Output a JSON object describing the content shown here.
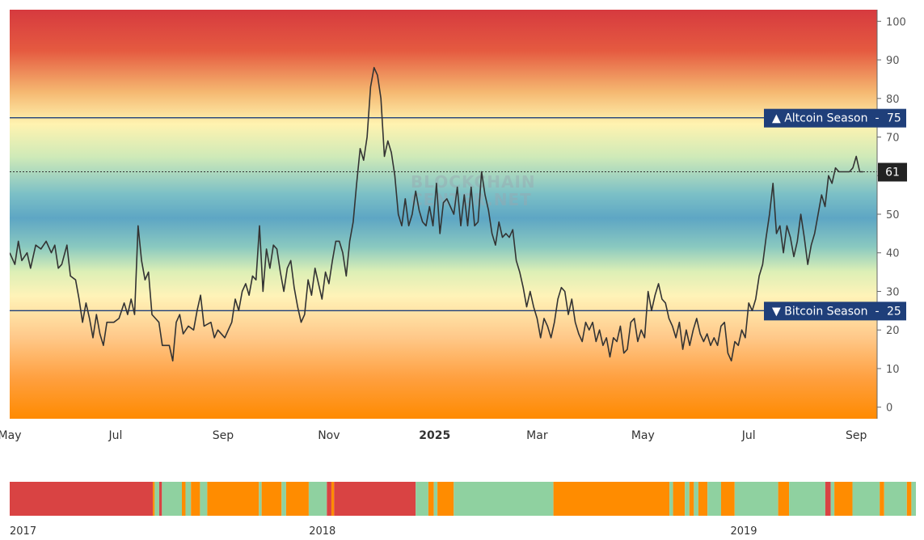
{
  "colors": {
    "band_red": "#d63a3f",
    "band_yellow": "#fff3b0",
    "band_blue": "#5ea6c4",
    "band_orange": "#ff8a00",
    "line": "#333333",
    "marker_navy": "#1f3f7a",
    "timeline_red": "#d94343",
    "timeline_green": "#8fd1a0",
    "timeline_orange": "#ff8c00"
  },
  "watermark": {
    "line1": "BLOCKCHAIN",
    "line2": "CENTER.NET"
  },
  "chart_data": {
    "type": "line",
    "title": "",
    "xlabel": "",
    "ylabel": "",
    "ylim": [
      -3,
      103
    ],
    "y_ticks": [
      0,
      10,
      20,
      30,
      40,
      50,
      60,
      70,
      80,
      90,
      100
    ],
    "x_range_days": [
      0,
      500
    ],
    "x_ticks": [
      {
        "label": "May",
        "day": 0,
        "bold": false
      },
      {
        "label": "Jul",
        "day": 61,
        "bold": false
      },
      {
        "label": "Sep",
        "day": 123,
        "bold": false
      },
      {
        "label": "Nov",
        "day": 184,
        "bold": false
      },
      {
        "label": "2025",
        "day": 245,
        "bold": true
      },
      {
        "label": "Mar",
        "day": 304,
        "bold": false
      },
      {
        "label": "May",
        "day": 365,
        "bold": false
      },
      {
        "label": "Jul",
        "day": 426,
        "bold": false
      },
      {
        "label": "Sep",
        "day": 488,
        "bold": false
      }
    ],
    "reference_lines": [
      {
        "label": "Altcoin Season",
        "value": 75,
        "arrow": "▲",
        "value_label": "75"
      },
      {
        "label": "Bitcoin Season",
        "value": 25,
        "arrow": "▼",
        "value_label": "25"
      }
    ],
    "current": {
      "value": 61,
      "label": "61"
    },
    "series": [
      {
        "values": [
          [
            0,
            40
          ],
          [
            3,
            37
          ],
          [
            5,
            43
          ],
          [
            7,
            38
          ],
          [
            10,
            40
          ],
          [
            12,
            36
          ],
          [
            15,
            42
          ],
          [
            18,
            41
          ],
          [
            21,
            43
          ],
          [
            24,
            40
          ],
          [
            26,
            42
          ],
          [
            28,
            36
          ],
          [
            30,
            37
          ],
          [
            33,
            42
          ],
          [
            35,
            34
          ],
          [
            38,
            33
          ],
          [
            40,
            28
          ],
          [
            42,
            22
          ],
          [
            44,
            27
          ],
          [
            46,
            23
          ],
          [
            48,
            18
          ],
          [
            50,
            24
          ],
          [
            52,
            19
          ],
          [
            54,
            16
          ],
          [
            56,
            22
          ],
          [
            60,
            22
          ],
          [
            63,
            23
          ],
          [
            66,
            27
          ],
          [
            68,
            24
          ],
          [
            70,
            28
          ],
          [
            72,
            24
          ],
          [
            74,
            47
          ],
          [
            76,
            38
          ],
          [
            78,
            33
          ],
          [
            80,
            35
          ],
          [
            82,
            24
          ],
          [
            84,
            23
          ],
          [
            86,
            22
          ],
          [
            88,
            16
          ],
          [
            92,
            16
          ],
          [
            94,
            12
          ],
          [
            96,
            22
          ],
          [
            98,
            24
          ],
          [
            100,
            19
          ],
          [
            103,
            21
          ],
          [
            106,
            20
          ],
          [
            108,
            25
          ],
          [
            110,
            29
          ],
          [
            112,
            21
          ],
          [
            116,
            22
          ],
          [
            118,
            18
          ],
          [
            120,
            20
          ],
          [
            124,
            18
          ],
          [
            126,
            20
          ],
          [
            128,
            22
          ],
          [
            130,
            28
          ],
          [
            132,
            25
          ],
          [
            134,
            30
          ],
          [
            136,
            32
          ],
          [
            138,
            29
          ],
          [
            140,
            34
          ],
          [
            142,
            33
          ],
          [
            144,
            47
          ],
          [
            146,
            30
          ],
          [
            148,
            41
          ],
          [
            150,
            36
          ],
          [
            152,
            42
          ],
          [
            154,
            41
          ],
          [
            156,
            35
          ],
          [
            158,
            30
          ],
          [
            160,
            36
          ],
          [
            162,
            38
          ],
          [
            164,
            31
          ],
          [
            166,
            26
          ],
          [
            168,
            22
          ],
          [
            170,
            24
          ],
          [
            172,
            33
          ],
          [
            174,
            29
          ],
          [
            176,
            36
          ],
          [
            178,
            32
          ],
          [
            180,
            28
          ],
          [
            182,
            35
          ],
          [
            184,
            32
          ],
          [
            186,
            38
          ],
          [
            188,
            43
          ],
          [
            190,
            43
          ],
          [
            192,
            40
          ],
          [
            194,
            34
          ],
          [
            196,
            43
          ],
          [
            198,
            48
          ],
          [
            200,
            58
          ],
          [
            202,
            67
          ],
          [
            204,
            64
          ],
          [
            206,
            70
          ],
          [
            208,
            83
          ],
          [
            210,
            88
          ],
          [
            212,
            86
          ],
          [
            214,
            80
          ],
          [
            216,
            65
          ],
          [
            218,
            69
          ],
          [
            220,
            66
          ],
          [
            222,
            60
          ],
          [
            224,
            50
          ],
          [
            226,
            47
          ],
          [
            228,
            54
          ],
          [
            230,
            47
          ],
          [
            232,
            50
          ],
          [
            234,
            56
          ],
          [
            236,
            51
          ],
          [
            238,
            48
          ],
          [
            240,
            47
          ],
          [
            242,
            52
          ],
          [
            244,
            47
          ],
          [
            246,
            58
          ],
          [
            248,
            45
          ],
          [
            250,
            53
          ],
          [
            252,
            54
          ],
          [
            254,
            52
          ],
          [
            256,
            50
          ],
          [
            258,
            57
          ],
          [
            260,
            47
          ],
          [
            262,
            55
          ],
          [
            264,
            47
          ],
          [
            266,
            57
          ],
          [
            268,
            47
          ],
          [
            270,
            48
          ],
          [
            272,
            61
          ],
          [
            274,
            55
          ],
          [
            276,
            51
          ],
          [
            278,
            45
          ],
          [
            280,
            42
          ],
          [
            282,
            48
          ],
          [
            284,
            44
          ],
          [
            286,
            45
          ],
          [
            288,
            44
          ],
          [
            290,
            46
          ],
          [
            292,
            38
          ],
          [
            294,
            35
          ],
          [
            296,
            31
          ],
          [
            298,
            26
          ],
          [
            300,
            30
          ],
          [
            302,
            26
          ],
          [
            304,
            23
          ],
          [
            306,
            18
          ],
          [
            308,
            23
          ],
          [
            310,
            21
          ],
          [
            312,
            18
          ],
          [
            314,
            22
          ],
          [
            316,
            28
          ],
          [
            318,
            31
          ],
          [
            320,
            30
          ],
          [
            322,
            24
          ],
          [
            324,
            28
          ],
          [
            326,
            22
          ],
          [
            328,
            19
          ],
          [
            330,
            17
          ],
          [
            332,
            22
          ],
          [
            334,
            20
          ],
          [
            336,
            22
          ],
          [
            338,
            17
          ],
          [
            340,
            20
          ],
          [
            342,
            16
          ],
          [
            344,
            18
          ],
          [
            346,
            13
          ],
          [
            348,
            18
          ],
          [
            350,
            17
          ],
          [
            352,
            21
          ],
          [
            354,
            14
          ],
          [
            356,
            15
          ],
          [
            358,
            22
          ],
          [
            360,
            23
          ],
          [
            362,
            17
          ],
          [
            364,
            20
          ],
          [
            366,
            18
          ],
          [
            368,
            30
          ],
          [
            370,
            25
          ],
          [
            372,
            29
          ],
          [
            374,
            32
          ],
          [
            376,
            28
          ],
          [
            378,
            27
          ],
          [
            380,
            23
          ],
          [
            382,
            21
          ],
          [
            384,
            18
          ],
          [
            386,
            22
          ],
          [
            388,
            15
          ],
          [
            390,
            20
          ],
          [
            392,
            16
          ],
          [
            394,
            20
          ],
          [
            396,
            23
          ],
          [
            398,
            19
          ],
          [
            400,
            17
          ],
          [
            402,
            19
          ],
          [
            404,
            16
          ],
          [
            406,
            18
          ],
          [
            408,
            16
          ],
          [
            410,
            21
          ],
          [
            412,
            22
          ],
          [
            414,
            14
          ],
          [
            416,
            12
          ],
          [
            418,
            17
          ],
          [
            420,
            16
          ],
          [
            422,
            20
          ],
          [
            424,
            18
          ],
          [
            426,
            27
          ],
          [
            428,
            25
          ],
          [
            430,
            28
          ],
          [
            432,
            34
          ],
          [
            434,
            37
          ],
          [
            436,
            44
          ],
          [
            438,
            50
          ],
          [
            440,
            58
          ],
          [
            442,
            45
          ],
          [
            444,
            47
          ],
          [
            446,
            40
          ],
          [
            448,
            47
          ],
          [
            450,
            44
          ],
          [
            452,
            39
          ],
          [
            454,
            43
          ],
          [
            456,
            50
          ],
          [
            458,
            44
          ],
          [
            460,
            37
          ],
          [
            462,
            42
          ],
          [
            464,
            45
          ],
          [
            466,
            50
          ],
          [
            468,
            55
          ],
          [
            470,
            52
          ],
          [
            472,
            60
          ],
          [
            474,
            58
          ],
          [
            476,
            62
          ],
          [
            478,
            61
          ],
          [
            480,
            61
          ],
          [
            482,
            61
          ],
          [
            484,
            61
          ],
          [
            486,
            62
          ],
          [
            488,
            65
          ],
          [
            490,
            61
          ],
          [
            492,
            61
          ]
        ]
      }
    ]
  },
  "timeline": {
    "labels": [
      {
        "text": "2017",
        "x": 0.0
      },
      {
        "text": "2018",
        "x": 0.345
      },
      {
        "text": "2019",
        "x": 0.81
      }
    ],
    "segments": [
      {
        "s": 0.0,
        "e": 0.158,
        "c": "red"
      },
      {
        "s": 0.158,
        "e": 0.16,
        "c": "orange"
      },
      {
        "s": 0.16,
        "e": 0.165,
        "c": "green"
      },
      {
        "s": 0.165,
        "e": 0.168,
        "c": "red"
      },
      {
        "s": 0.168,
        "e": 0.19,
        "c": "green"
      },
      {
        "s": 0.19,
        "e": 0.194,
        "c": "orange"
      },
      {
        "s": 0.194,
        "e": 0.2,
        "c": "green"
      },
      {
        "s": 0.2,
        "e": 0.21,
        "c": "orange"
      },
      {
        "s": 0.21,
        "e": 0.218,
        "c": "green"
      },
      {
        "s": 0.218,
        "e": 0.275,
        "c": "orange"
      },
      {
        "s": 0.275,
        "e": 0.278,
        "c": "green"
      },
      {
        "s": 0.278,
        "e": 0.3,
        "c": "orange"
      },
      {
        "s": 0.3,
        "e": 0.305,
        "c": "green"
      },
      {
        "s": 0.305,
        "e": 0.33,
        "c": "orange"
      },
      {
        "s": 0.33,
        "e": 0.35,
        "c": "green"
      },
      {
        "s": 0.35,
        "e": 0.355,
        "c": "red"
      },
      {
        "s": 0.355,
        "e": 0.358,
        "c": "orange"
      },
      {
        "s": 0.358,
        "e": 0.448,
        "c": "red"
      },
      {
        "s": 0.448,
        "e": 0.462,
        "c": "green"
      },
      {
        "s": 0.462,
        "e": 0.468,
        "c": "orange"
      },
      {
        "s": 0.468,
        "e": 0.472,
        "c": "green"
      },
      {
        "s": 0.472,
        "e": 0.49,
        "c": "orange"
      },
      {
        "s": 0.49,
        "e": 0.6,
        "c": "green"
      },
      {
        "s": 0.6,
        "e": 0.728,
        "c": "orange"
      },
      {
        "s": 0.728,
        "e": 0.732,
        "c": "green"
      },
      {
        "s": 0.732,
        "e": 0.745,
        "c": "orange"
      },
      {
        "s": 0.745,
        "e": 0.75,
        "c": "green"
      },
      {
        "s": 0.75,
        "e": 0.755,
        "c": "orange"
      },
      {
        "s": 0.755,
        "e": 0.76,
        "c": "green"
      },
      {
        "s": 0.76,
        "e": 0.77,
        "c": "orange"
      },
      {
        "s": 0.77,
        "e": 0.785,
        "c": "green"
      },
      {
        "s": 0.785,
        "e": 0.8,
        "c": "orange"
      },
      {
        "s": 0.8,
        "e": 0.848,
        "c": "green"
      },
      {
        "s": 0.848,
        "e": 0.86,
        "c": "orange"
      },
      {
        "s": 0.86,
        "e": 0.9,
        "c": "green"
      },
      {
        "s": 0.9,
        "e": 0.906,
        "c": "red"
      },
      {
        "s": 0.906,
        "e": 0.91,
        "c": "green"
      },
      {
        "s": 0.91,
        "e": 0.93,
        "c": "orange"
      },
      {
        "s": 0.93,
        "e": 0.96,
        "c": "green"
      },
      {
        "s": 0.96,
        "e": 0.965,
        "c": "orange"
      },
      {
        "s": 0.965,
        "e": 0.99,
        "c": "green"
      },
      {
        "s": 0.99,
        "e": 0.995,
        "c": "orange"
      },
      {
        "s": 0.995,
        "e": 1.0,
        "c": "green"
      }
    ]
  }
}
